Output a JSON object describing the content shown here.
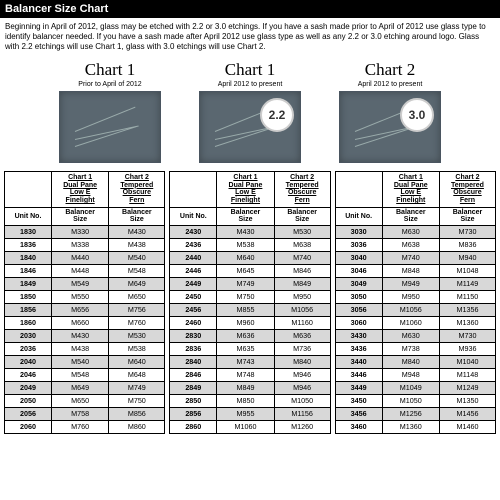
{
  "title": "Balancer Size Chart",
  "intro": "Beginning in April of 2012, glass may be etched with 2.2 or 3.0 etchings. If you have a sash made prior to April of 2012 use glass type to identify balancer needed. If you have a sash made after April 2012 use glass type as well as any 2.2 or 3.0 etching around logo. Glass with 2.2 etchings will use Chart 1, glass with 3.0 etchings will use Chart 2.",
  "charts": [
    {
      "title": "Chart 1",
      "sub": "Prior to April of 2012",
      "badge": ""
    },
    {
      "title": "Chart 1",
      "sub": "April 2012 to present",
      "badge": "2.2"
    },
    {
      "title": "Chart 2",
      "sub": "April 2012 to present",
      "badge": "3.0"
    }
  ],
  "cols": {
    "c1_l1": "Chart 1",
    "c1_l2": "Dual Pane",
    "c1_l3": "Low E",
    "c1_l4": "Finelight",
    "c2_l1": "Chart 2",
    "c2_l2": "Tempered",
    "c2_l3": "Obscure",
    "c2_l4": "Fern",
    "bal": "Balancer",
    "size": "Size",
    "unit": "Unit No."
  },
  "rows1": [
    [
      "1830",
      "M330",
      "M430"
    ],
    [
      "1836",
      "M338",
      "M438"
    ],
    [
      "1840",
      "M440",
      "M540"
    ],
    [
      "1846",
      "M448",
      "M548"
    ],
    [
      "1849",
      "M549",
      "M649"
    ],
    [
      "1850",
      "M550",
      "M650"
    ],
    [
      "1856",
      "M656",
      "M756"
    ],
    [
      "1860",
      "M660",
      "M760"
    ],
    [
      "2030",
      "M430",
      "M530"
    ],
    [
      "2036",
      "M438",
      "M538"
    ],
    [
      "2040",
      "M540",
      "M640"
    ],
    [
      "2046",
      "M548",
      "M648"
    ],
    [
      "2049",
      "M649",
      "M749"
    ],
    [
      "2050",
      "M650",
      "M750"
    ],
    [
      "2056",
      "M758",
      "M856"
    ],
    [
      "2060",
      "M760",
      "M860"
    ]
  ],
  "rows2": [
    [
      "2430",
      "M430",
      "M530"
    ],
    [
      "2436",
      "M538",
      "M638"
    ],
    [
      "2440",
      "M640",
      "M740"
    ],
    [
      "2446",
      "M645",
      "M846"
    ],
    [
      "2449",
      "M749",
      "M849"
    ],
    [
      "2450",
      "M750",
      "M950"
    ],
    [
      "2456",
      "M855",
      "M1056"
    ],
    [
      "2460",
      "M960",
      "M1160"
    ],
    [
      "2830",
      "M636",
      "M636"
    ],
    [
      "2836",
      "M635",
      "M736"
    ],
    [
      "2840",
      "M743",
      "M840"
    ],
    [
      "2846",
      "M748",
      "M946"
    ],
    [
      "2849",
      "M849",
      "M946"
    ],
    [
      "2850",
      "M850",
      "M1050"
    ],
    [
      "2856",
      "M955",
      "M1156"
    ],
    [
      "2860",
      "M1060",
      "M1260"
    ]
  ],
  "rows3": [
    [
      "3030",
      "M630",
      "M730"
    ],
    [
      "3036",
      "M638",
      "M836"
    ],
    [
      "3040",
      "M740",
      "M940"
    ],
    [
      "3046",
      "M848",
      "M1048"
    ],
    [
      "3049",
      "M949",
      "M1149"
    ],
    [
      "3050",
      "M950",
      "M1150"
    ],
    [
      "3056",
      "M1056",
      "M1356"
    ],
    [
      "3060",
      "M1060",
      "M1360"
    ],
    [
      "3430",
      "M630",
      "M730"
    ],
    [
      "3436",
      "M738",
      "M936"
    ],
    [
      "3440",
      "M840",
      "M1040"
    ],
    [
      "3446",
      "M948",
      "M1148"
    ],
    [
      "3449",
      "M1049",
      "M1249"
    ],
    [
      "3450",
      "M1050",
      "M1350"
    ],
    [
      "3456",
      "M1256",
      "M1456"
    ],
    [
      "3460",
      "M1360",
      "M1460"
    ]
  ]
}
